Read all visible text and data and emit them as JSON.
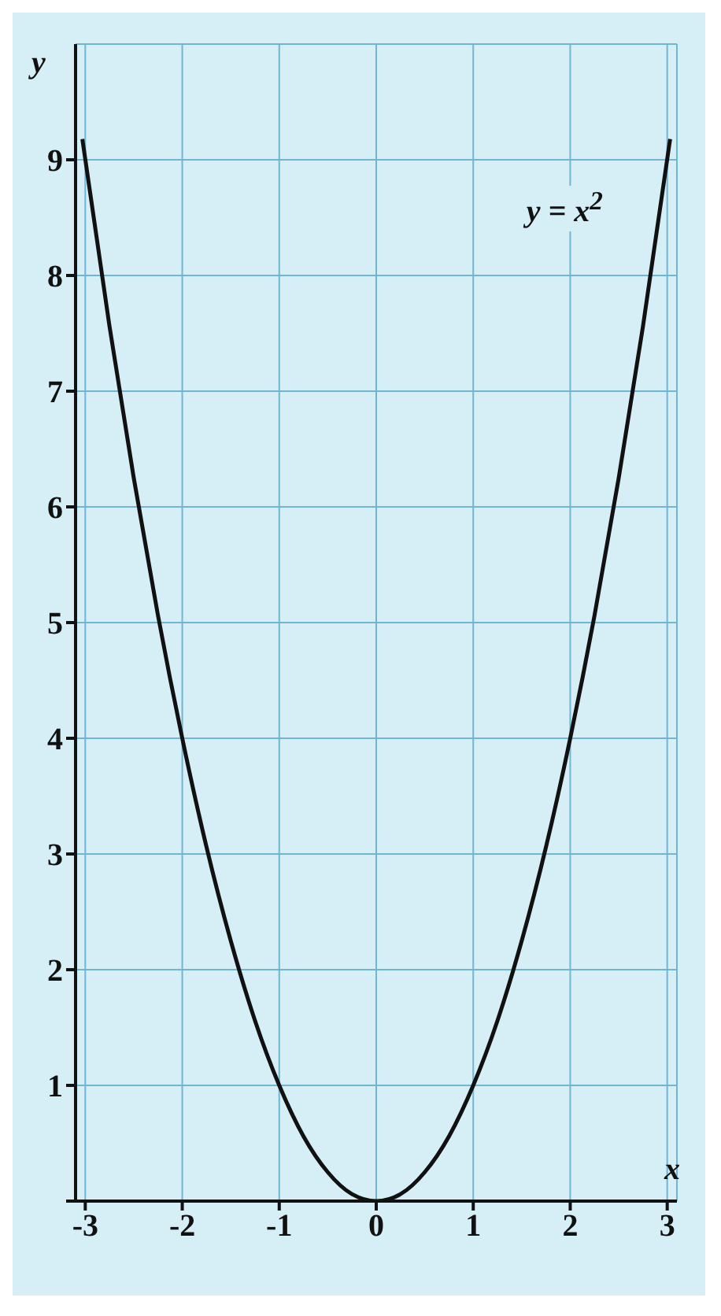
{
  "chart_data": {
    "type": "line",
    "xlabel": "x",
    "ylabel": "y",
    "annotations": [
      "y = x$^{2}$"
    ],
    "x": [
      -3.03,
      -2.75,
      -2.5,
      -2.25,
      -2,
      -1.75,
      -1.5,
      -1.25,
      -1,
      -0.75,
      -0.5,
      -0.25,
      0,
      0.25,
      0.5,
      0.75,
      1,
      1.25,
      1.5,
      1.75,
      2,
      2.25,
      2.5,
      2.75,
      3.03
    ],
    "series": [
      {
        "color": "#111111",
        "values": [
          9.18,
          7.56,
          6.25,
          5.06,
          4,
          3.06,
          2.25,
          1.56,
          1,
          0.56,
          0.25,
          0.06,
          0,
          0.06,
          0.25,
          0.56,
          1,
          1.56,
          2.25,
          3.06,
          4,
          5.06,
          6.25,
          7.56,
          9.18
        ]
      }
    ],
    "xlim": [
      -3.1,
      3.1
    ],
    "ylim": [
      0,
      10
    ],
    "xticks": [
      -3,
      -2,
      -1,
      0,
      1,
      2,
      3
    ],
    "yticks": [
      {
        "value": 0,
        "label": null
      },
      1,
      2,
      3,
      4,
      5,
      6,
      7,
      8,
      9
    ],
    "grid": true,
    "marker": "none",
    "line_style": "solid"
  }
}
